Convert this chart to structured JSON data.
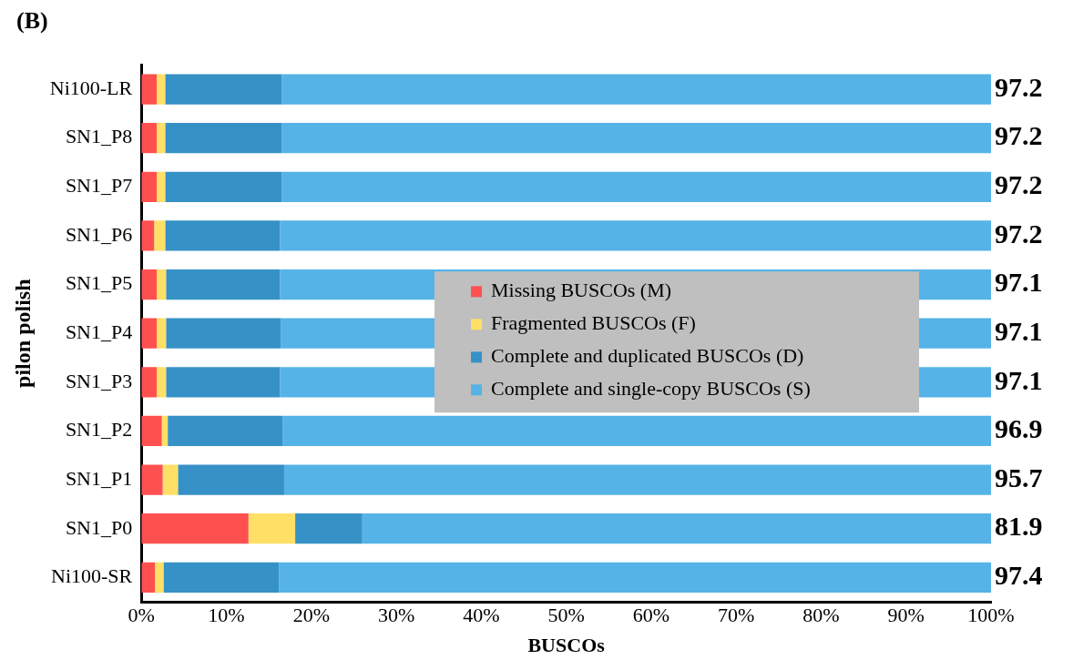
{
  "chart_data": {
    "type": "bar",
    "orientation": "horizontal",
    "stacked": true,
    "xlabel": "BUSCOs",
    "ylabel": "pilon polish",
    "annotations": [
      "(B)",
      "97.2",
      "97.2",
      "97.2",
      "97.2",
      "97.1",
      "97.1",
      "97.1",
      "96.9",
      "95.7",
      "81.9",
      "97.4"
    ],
    "categories": [
      "Ni100-LR",
      "SN1_P8",
      "SN1_P7",
      "SN1_P6",
      "SN1_P5",
      "SN1_P4",
      "SN1_P3",
      "SN1_P2",
      "SN1_P1",
      "SN1_P0",
      "Ni100-SR"
    ],
    "series": [
      {
        "name": "Missing BUSCOs (M)",
        "color": "#ff5050",
        "values": [
          1.8,
          1.8,
          1.8,
          1.5,
          1.8,
          1.8,
          1.8,
          2.4,
          2.5,
          12.6,
          1.6
        ]
      },
      {
        "name": "Fragmented BUSCOs (F)",
        "color": "#ffe066",
        "values": [
          1.0,
          1.0,
          1.0,
          1.3,
          1.1,
          1.1,
          1.1,
          0.7,
          1.8,
          5.5,
          1.0
        ]
      },
      {
        "name": "Complete and duplicated BUSCOs (D)",
        "color": "#3691c6",
        "values": [
          13.7,
          13.7,
          13.7,
          13.5,
          13.4,
          13.5,
          13.4,
          13.5,
          12.5,
          7.9,
          13.6
        ]
      },
      {
        "name": "Complete and single-copy BUSCOs (S)",
        "color": "#56b3e7",
        "values": [
          83.5,
          83.5,
          83.5,
          83.7,
          83.7,
          83.6,
          83.7,
          83.4,
          83.2,
          74.0,
          83.8
        ]
      }
    ],
    "xlim": [
      0,
      100
    ],
    "xticks": [
      {
        "value": 0,
        "label": "0%"
      },
      {
        "value": 10,
        "label": "10%"
      },
      {
        "value": 20,
        "label": "20%"
      },
      {
        "value": 30,
        "label": "30%"
      },
      {
        "value": 40,
        "label": "40%"
      },
      {
        "value": 50,
        "label": "50%"
      },
      {
        "value": 60,
        "label": "60%"
      },
      {
        "value": 70,
        "label": "70%"
      },
      {
        "value": 80,
        "label": "80%"
      },
      {
        "value": 90,
        "label": "90%"
      },
      {
        "value": 100,
        "label": "100%"
      }
    ],
    "grid": false,
    "legend": "right"
  }
}
